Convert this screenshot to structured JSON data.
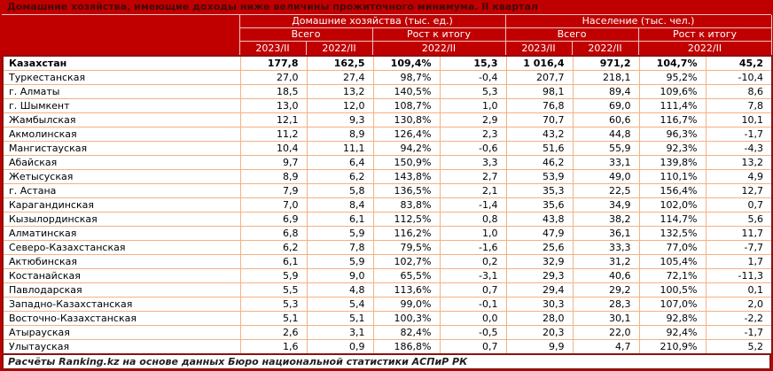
{
  "colors": {
    "background_red": "#C00000",
    "frame_maroon": "#8e1111",
    "data_grid_peach": "#f4b183",
    "header_grid_pink": "#efc3c3",
    "title_text": "#470808",
    "header_text": "#ffffff"
  },
  "chart_data": {
    "type": "table",
    "title": "Домашние хозяйства, имеющие доходы ниже величины прожиточного минимума. II квартал",
    "header": {
      "groups": [
        "Домашние хозяйства (тыс. ед.)",
        "Население (тыс. чел.)"
      ],
      "subs": [
        "Всего",
        "Рост к итогу",
        "Всего",
        "Рост к итогу"
      ],
      "periods": [
        "2023/II",
        "2022/II",
        "2022/II",
        "2023/II",
        "2022/II",
        "2022/II"
      ]
    },
    "rows": [
      {
        "region": "Казахстан",
        "bold": true,
        "values": [
          "177,8",
          "162,5",
          "109,4%",
          "15,3",
          "1 016,4",
          "971,2",
          "104,7%",
          "45,2"
        ]
      },
      {
        "region": "Туркестанская",
        "values": [
          "27,0",
          "27,4",
          "98,7%",
          "-0,4",
          "207,7",
          "218,1",
          "95,2%",
          "-10,4"
        ]
      },
      {
        "region": "г. Алматы",
        "values": [
          "18,5",
          "13,2",
          "140,5%",
          "5,3",
          "98,1",
          "89,4",
          "109,6%",
          "8,6"
        ]
      },
      {
        "region": "г. Шымкент",
        "values": [
          "13,0",
          "12,0",
          "108,7%",
          "1,0",
          "76,8",
          "69,0",
          "111,4%",
          "7,8"
        ]
      },
      {
        "region": "Жамбылская",
        "values": [
          "12,1",
          "9,3",
          "130,8%",
          "2,9",
          "70,7",
          "60,6",
          "116,7%",
          "10,1"
        ]
      },
      {
        "region": "Акмолинская",
        "values": [
          "11,2",
          "8,9",
          "126,4%",
          "2,3",
          "43,2",
          "44,8",
          "96,3%",
          "-1,7"
        ]
      },
      {
        "region": "Мангистауская",
        "values": [
          "10,4",
          "11,1",
          "94,2%",
          "-0,6",
          "51,6",
          "55,9",
          "92,3%",
          "-4,3"
        ]
      },
      {
        "region": "Абайская",
        "values": [
          "9,7",
          "6,4",
          "150,9%",
          "3,3",
          "46,2",
          "33,1",
          "139,8%",
          "13,2"
        ]
      },
      {
        "region": "Жетысуская",
        "values": [
          "8,9",
          "6,2",
          "143,8%",
          "2,7",
          "53,9",
          "49,0",
          "110,1%",
          "4,9"
        ]
      },
      {
        "region": "г. Астана",
        "values": [
          "7,9",
          "5,8",
          "136,5%",
          "2,1",
          "35,3",
          "22,5",
          "156,4%",
          "12,7"
        ]
      },
      {
        "region": "Карагандинская",
        "values": [
          "7,0",
          "8,4",
          "83,8%",
          "-1,4",
          "35,6",
          "34,9",
          "102,0%",
          "0,7"
        ]
      },
      {
        "region": "Кызылординская",
        "values": [
          "6,9",
          "6,1",
          "112,5%",
          "0,8",
          "43,8",
          "38,2",
          "114,7%",
          "5,6"
        ]
      },
      {
        "region": "Алматинская",
        "values": [
          "6,8",
          "5,9",
          "116,2%",
          "1,0",
          "47,9",
          "36,1",
          "132,5%",
          "11,7"
        ]
      },
      {
        "region": "Северо-Казахстанская",
        "values": [
          "6,2",
          "7,8",
          "79,5%",
          "-1,6",
          "25,6",
          "33,3",
          "77,0%",
          "-7,7"
        ]
      },
      {
        "region": "Актюбинская",
        "values": [
          "6,1",
          "5,9",
          "102,7%",
          "0,2",
          "32,9",
          "31,2",
          "105,4%",
          "1,7"
        ]
      },
      {
        "region": "Костанайская",
        "values": [
          "5,9",
          "9,0",
          "65,5%",
          "-3,1",
          "29,3",
          "40,6",
          "72,1%",
          "-11,3"
        ]
      },
      {
        "region": "Павлодарская",
        "values": [
          "5,5",
          "4,8",
          "113,6%",
          "0,7",
          "29,4",
          "29,2",
          "100,5%",
          "0,1"
        ]
      },
      {
        "region": "Западно-Казахстанская",
        "values": [
          "5,3",
          "5,4",
          "99,0%",
          "-0,1",
          "30,3",
          "28,3",
          "107,0%",
          "2,0"
        ]
      },
      {
        "region": "Восточно-Казахстанская",
        "values": [
          "5,1",
          "5,1",
          "100,3%",
          "0,0",
          "28,0",
          "30,1",
          "92,8%",
          "-2,2"
        ]
      },
      {
        "region": "Атырауская",
        "values": [
          "2,6",
          "3,1",
          "82,4%",
          "-0,5",
          "20,3",
          "22,0",
          "92,4%",
          "-1,7"
        ]
      },
      {
        "region": "Улытауская",
        "values": [
          "1,6",
          "0,9",
          "186,8%",
          "0,7",
          "9,9",
          "4,7",
          "210,9%",
          "5,2"
        ]
      }
    ],
    "footnote": "Расчёты Ranking.kz на основе данных Бюро национальной статистики АСПиР РК"
  }
}
